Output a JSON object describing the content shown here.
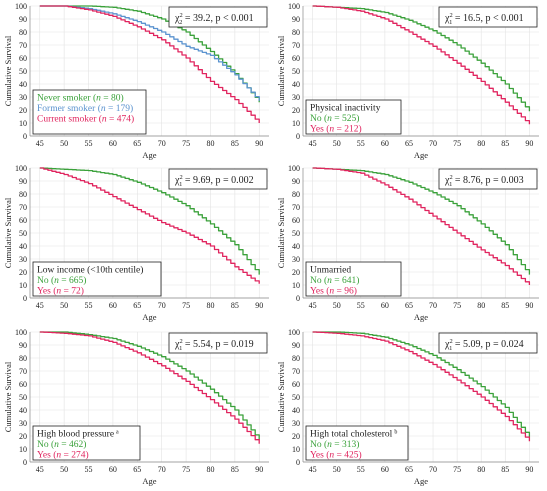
{
  "colors": {
    "green": "#3aa13a",
    "blue": "#5b93cf",
    "red": "#e0245e",
    "text": "#222222"
  },
  "chart_data": [
    {
      "type": "line",
      "panel": "smoking",
      "xlabel": "Age",
      "ylabel": "Cumulative Survival",
      "xlim": [
        43,
        92
      ],
      "ylim": [
        0,
        100
      ],
      "xticks": [
        "45",
        "50",
        "55",
        "60",
        "65",
        "70",
        "75",
        "80",
        "85",
        "90"
      ],
      "yticks": [
        "0",
        "10",
        "20",
        "30",
        "40",
        "50",
        "60",
        "70",
        "80",
        "90",
        "100"
      ],
      "stat": {
        "pre": "χ",
        "sup": "2",
        "sub": "2",
        "text": " = 39.2, p < 0.001"
      },
      "legend_title": "",
      "legend_placement": "bottom-left",
      "series": [
        {
          "name": "Never smoker",
          "n": "80",
          "color": "#3aa13a",
          "x": [
            45,
            50,
            55,
            60,
            65,
            70,
            75,
            80,
            85,
            90
          ],
          "values": [
            100,
            100,
            100,
            99,
            96,
            90,
            80,
            65,
            48,
            26
          ]
        },
        {
          "name": "Former smoker",
          "n": "179",
          "color": "#5b93cf",
          "x": [
            45,
            50,
            55,
            60,
            65,
            70,
            75,
            80,
            85,
            90
          ],
          "values": [
            100,
            100,
            98,
            94,
            88,
            80,
            69,
            62,
            47,
            27
          ]
        },
        {
          "name": "Current smoker",
          "n": "474",
          "color": "#e0245e",
          "x": [
            45,
            50,
            55,
            60,
            65,
            70,
            75,
            80,
            85,
            90
          ],
          "values": [
            100,
            100,
            97,
            92,
            84,
            74,
            60,
            42,
            28,
            10
          ]
        }
      ]
    },
    {
      "type": "line",
      "panel": "physical-inactivity",
      "xlabel": "Age",
      "ylabel": "Cumulative Survival",
      "xlim": [
        43,
        92
      ],
      "ylim": [
        0,
        100
      ],
      "xticks": [
        "45",
        "50",
        "55",
        "60",
        "65",
        "70",
        "75",
        "80",
        "85",
        "90"
      ],
      "yticks": [
        "0",
        "10",
        "20",
        "30",
        "40",
        "50",
        "60",
        "70",
        "80",
        "90",
        "100"
      ],
      "stat": {
        "pre": "χ",
        "sup": "2",
        "sub": "1",
        "text": " = 16.5, p < 0.001"
      },
      "legend_title": "Physical inactivity",
      "legend_placement": "bottom-left",
      "series": [
        {
          "name": "No",
          "n": "525",
          "color": "#3aa13a",
          "x": [
            45,
            50,
            55,
            60,
            65,
            70,
            75,
            80,
            85,
            90
          ],
          "values": [
            100,
            99,
            98,
            95,
            89,
            81,
            70,
            56,
            40,
            19
          ]
        },
        {
          "name": "Yes",
          "n": "212",
          "color": "#e0245e",
          "x": [
            45,
            50,
            55,
            60,
            65,
            70,
            75,
            80,
            85,
            90
          ],
          "values": [
            100,
            99,
            96,
            90,
            80,
            69,
            56,
            42,
            26,
            9
          ]
        }
      ]
    },
    {
      "type": "line",
      "panel": "low-income",
      "xlabel": "Age",
      "ylabel": "Cumulative Survival",
      "xlim": [
        43,
        92
      ],
      "ylim": [
        0,
        100
      ],
      "xticks": [
        "45",
        "50",
        "55",
        "60",
        "65",
        "70",
        "75",
        "80",
        "85",
        "90"
      ],
      "yticks": [
        "0",
        "10",
        "20",
        "30",
        "40",
        "50",
        "60",
        "70",
        "80",
        "90",
        "100"
      ],
      "stat": {
        "pre": "χ",
        "sup": "2",
        "sub": "1",
        "text": " = 9.69, p = 0.002"
      },
      "legend_title": "Low income (<10th centile)",
      "legend_placement": "bottom-left",
      "series": [
        {
          "name": "No",
          "n": "665",
          "color": "#3aa13a",
          "x": [
            45,
            50,
            55,
            60,
            65,
            70,
            75,
            80,
            85,
            90
          ],
          "values": [
            100,
            99,
            98,
            95,
            89,
            81,
            71,
            57,
            41,
            18
          ]
        },
        {
          "name": "Yes",
          "n": "72",
          "color": "#e0245e",
          "x": [
            45,
            50,
            55,
            60,
            65,
            70,
            75,
            80,
            85,
            90
          ],
          "values": [
            100,
            95,
            88,
            78,
            68,
            58,
            50,
            40,
            24,
            11
          ]
        }
      ]
    },
    {
      "type": "line",
      "panel": "unmarried",
      "xlabel": "Age",
      "ylabel": "Cumulative Survival",
      "xlim": [
        43,
        92
      ],
      "ylim": [
        0,
        100
      ],
      "xticks": [
        "45",
        "50",
        "55",
        "60",
        "65",
        "70",
        "75",
        "80",
        "85",
        "90"
      ],
      "yticks": [
        "0",
        "10",
        "20",
        "30",
        "40",
        "50",
        "60",
        "70",
        "80",
        "90",
        "100"
      ],
      "stat": {
        "pre": "χ",
        "sup": "2",
        "sub": "1",
        "text": " = 8.76, p = 0.003"
      },
      "legend_title": "Unmarried",
      "legend_placement": "bottom-left",
      "series": [
        {
          "name": "No",
          "n": "641",
          "color": "#3aa13a",
          "x": [
            45,
            50,
            55,
            60,
            65,
            70,
            75,
            80,
            85,
            90
          ],
          "values": [
            100,
            99,
            98,
            95,
            89,
            81,
            71,
            57,
            41,
            18
          ]
        },
        {
          "name": "Yes",
          "n": "96",
          "color": "#e0245e",
          "x": [
            45,
            50,
            55,
            60,
            65,
            70,
            75,
            80,
            85,
            90
          ],
          "values": [
            100,
            99,
            96,
            87,
            76,
            63,
            50,
            37,
            25,
            10
          ]
        }
      ]
    },
    {
      "type": "line",
      "panel": "high-blood-pressure",
      "xlabel": "Age",
      "ylabel": "Cumulative Survival",
      "xlim": [
        43,
        92
      ],
      "ylim": [
        0,
        100
      ],
      "xticks": [
        "45",
        "50",
        "55",
        "60",
        "65",
        "70",
        "75",
        "80",
        "85",
        "90"
      ],
      "yticks": [
        "0",
        "10",
        "20",
        "30",
        "40",
        "50",
        "60",
        "70",
        "80",
        "90",
        "100"
      ],
      "stat": {
        "pre": "χ",
        "sup": "2",
        "sub": "1",
        "text": " = 5.54, p = 0.019"
      },
      "legend_title": "High blood pressure",
      "legend_title_mark": "a",
      "legend_placement": "bottom-left",
      "series": [
        {
          "name": "No",
          "n": "462",
          "color": "#3aa13a",
          "x": [
            45,
            50,
            55,
            60,
            65,
            70,
            75,
            80,
            85,
            90
          ],
          "values": [
            100,
            100,
            98,
            95,
            89,
            81,
            70,
            56,
            40,
            17
          ]
        },
        {
          "name": "Yes",
          "n": "274",
          "color": "#e0245e",
          "x": [
            45,
            50,
            55,
            60,
            65,
            70,
            75,
            80,
            85,
            90
          ],
          "values": [
            100,
            99,
            97,
            92,
            84,
            74,
            62,
            48,
            33,
            14
          ]
        }
      ]
    },
    {
      "type": "line",
      "panel": "high-total-cholesterol",
      "xlabel": "Age",
      "ylabel": "Cumulative Survival",
      "xlim": [
        43,
        92
      ],
      "ylim": [
        0,
        100
      ],
      "xticks": [
        "45",
        "50",
        "55",
        "60",
        "65",
        "70",
        "75",
        "80",
        "85",
        "90"
      ],
      "yticks": [
        "0",
        "10",
        "20",
        "30",
        "40",
        "50",
        "60",
        "70",
        "80",
        "90",
        "100"
      ],
      "stat": {
        "pre": "χ",
        "sup": "2",
        "sub": "1",
        "text": " = 5.09, p = 0.024"
      },
      "legend_title": "High total cholesterol",
      "legend_title_mark": "b",
      "legend_placement": "bottom-left",
      "series": [
        {
          "name": "No",
          "n": "313",
          "color": "#3aa13a",
          "x": [
            45,
            50,
            55,
            60,
            65,
            70,
            75,
            80,
            85,
            90
          ],
          "values": [
            100,
            100,
            99,
            96,
            90,
            82,
            71,
            58,
            42,
            19
          ]
        },
        {
          "name": "Yes",
          "n": "425",
          "color": "#e0245e",
          "x": [
            45,
            50,
            55,
            60,
            65,
            70,
            75,
            80,
            85,
            90
          ],
          "values": [
            100,
            99,
            97,
            93,
            85,
            75,
            63,
            50,
            35,
            16
          ]
        }
      ]
    }
  ]
}
